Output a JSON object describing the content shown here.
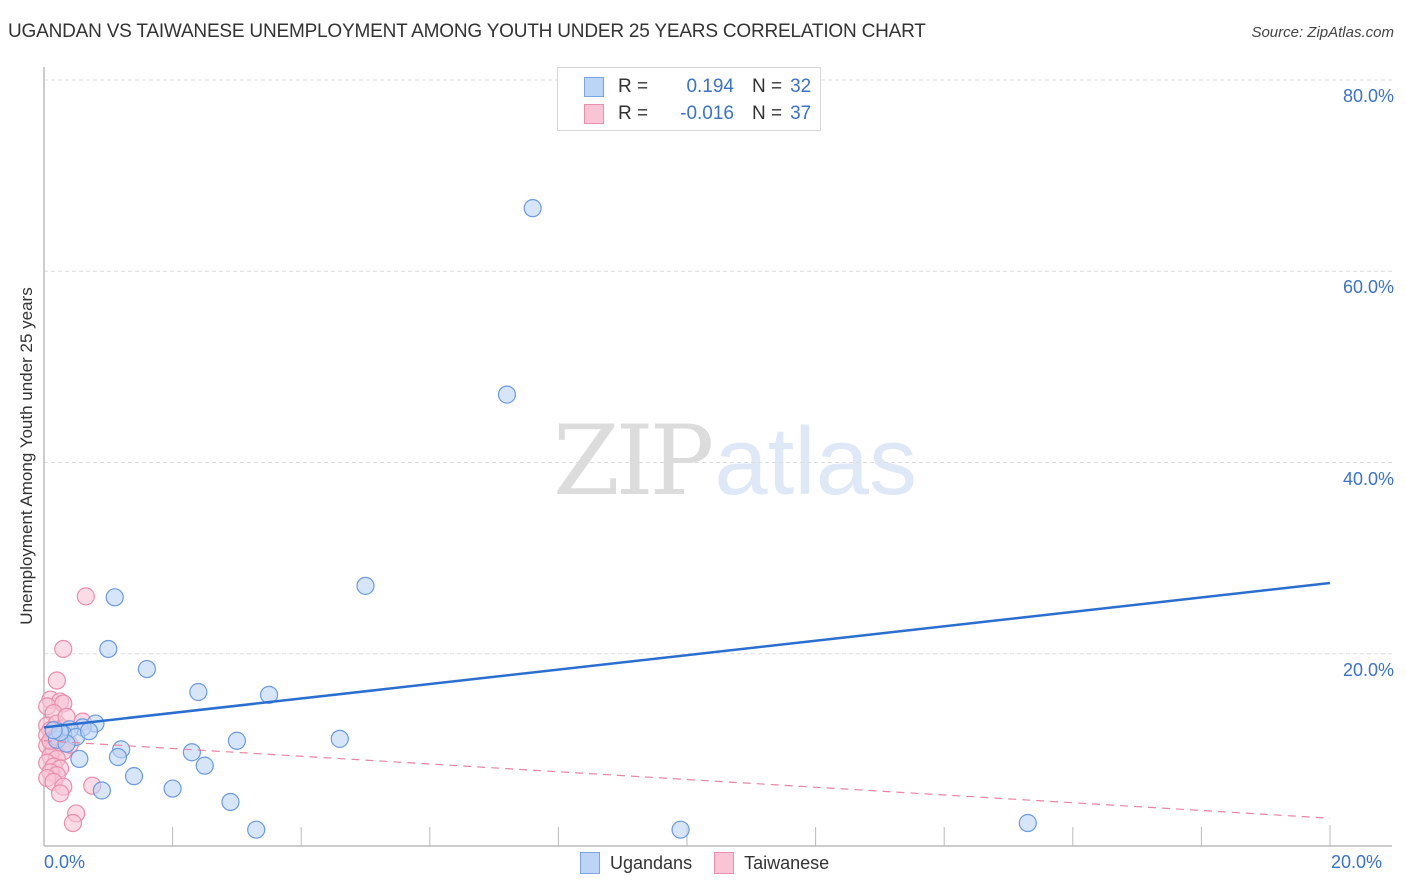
{
  "header": {
    "title": "UGANDAN VS TAIWANESE UNEMPLOYMENT AMONG YOUTH UNDER 25 YEARS CORRELATION CHART",
    "source": "Source: ZipAtlas.com"
  },
  "watermark": {
    "zip": "ZIP",
    "atlas": "atlas"
  },
  "legend": {
    "rows": [
      {
        "r_label": "R =",
        "r_value": "0.194",
        "n_label": "N =",
        "n_value": "32",
        "series": "Ugandans"
      },
      {
        "r_label": "R =",
        "r_value": "-0.016",
        "n_label": "N =",
        "n_value": "37",
        "series": "Taiwanese"
      }
    ]
  },
  "bottom_legend": {
    "items": [
      {
        "label": "Ugandans",
        "color": "#bcd4f5"
      },
      {
        "label": "Taiwanese",
        "color": "#f9c5d5"
      }
    ]
  },
  "axes": {
    "ylabel": "Unemployment Among Youth under 25 years",
    "y_ticks": [
      "80.0%",
      "60.0%",
      "40.0%",
      "20.0%"
    ],
    "x_ticks": {
      "left": "0.0%",
      "right": "20.0%"
    }
  },
  "colors": {
    "blue_fill": "#bcd4f5",
    "blue_stroke": "#6b9be0",
    "blue_line": "#2a6fd0",
    "pink_fill": "#f9c5d5",
    "pink_stroke": "#ea8eab",
    "pink_line": "#e8849f",
    "tick_label": "#3b73c9"
  },
  "chart_data": {
    "type": "scatter",
    "title": "UGANDAN VS TAIWANESE UNEMPLOYMENT AMONG YOUTH UNDER 25 YEARS CORRELATION CHART",
    "xlabel": "",
    "ylabel": "Unemployment Among Youth under 25 years",
    "xlim": [
      0,
      20
    ],
    "ylim": [
      0,
      80
    ],
    "x_tick_labels": [
      "0.0%",
      "20.0%"
    ],
    "y_tick_labels": [
      "20.0%",
      "40.0%",
      "60.0%",
      "80.0%"
    ],
    "grid": "horizontal dashed",
    "legend_position": "top-center and bottom-center",
    "series": [
      {
        "name": "Ugandans",
        "r": 0.194,
        "n": 32,
        "trend": {
          "x": [
            0,
            20
          ],
          "y": [
            12.3,
            27.4
          ]
        },
        "points": [
          [
            7.6,
            66.6
          ],
          [
            7.2,
            47.1
          ],
          [
            5.0,
            27.1
          ],
          [
            1.1,
            25.9
          ],
          [
            1.0,
            20.5
          ],
          [
            1.6,
            18.4
          ],
          [
            2.4,
            16.0
          ],
          [
            3.5,
            15.7
          ],
          [
            0.8,
            12.7
          ],
          [
            0.6,
            12.3
          ],
          [
            0.4,
            12.1
          ],
          [
            0.3,
            11.6
          ],
          [
            0.5,
            11.3
          ],
          [
            0.2,
            11.0
          ],
          [
            0.35,
            10.6
          ],
          [
            4.6,
            11.1
          ],
          [
            3.0,
            10.9
          ],
          [
            1.2,
            10.0
          ],
          [
            2.3,
            9.7
          ],
          [
            1.15,
            9.2
          ],
          [
            0.55,
            9.0
          ],
          [
            2.5,
            8.3
          ],
          [
            1.4,
            7.2
          ],
          [
            0.9,
            5.7
          ],
          [
            2.0,
            5.9
          ],
          [
            2.9,
            4.5
          ],
          [
            3.3,
            1.6
          ],
          [
            9.9,
            1.6
          ],
          [
            15.3,
            2.3
          ],
          [
            0.25,
            11.8
          ],
          [
            0.7,
            11.9
          ],
          [
            0.15,
            12.0
          ]
        ]
      },
      {
        "name": "Taiwanese",
        "r": -0.016,
        "n": 37,
        "trend": {
          "x": [
            0,
            20
          ],
          "y": [
            10.9,
            2.8
          ]
        },
        "points": [
          [
            0.65,
            26.0
          ],
          [
            0.3,
            20.5
          ],
          [
            0.2,
            17.2
          ],
          [
            0.1,
            15.2
          ],
          [
            0.25,
            15.0
          ],
          [
            0.05,
            14.5
          ],
          [
            0.3,
            14.8
          ],
          [
            0.15,
            13.8
          ],
          [
            0.05,
            12.5
          ],
          [
            0.2,
            12.7
          ],
          [
            0.1,
            12.0
          ],
          [
            0.3,
            12.2
          ],
          [
            0.05,
            11.5
          ],
          [
            0.15,
            11.0
          ],
          [
            0.25,
            10.8
          ],
          [
            0.05,
            10.4
          ],
          [
            0.15,
            10.0
          ],
          [
            0.3,
            9.8
          ],
          [
            0.1,
            9.3
          ],
          [
            0.2,
            9.0
          ],
          [
            0.05,
            8.6
          ],
          [
            0.15,
            8.2
          ],
          [
            0.25,
            8.0
          ],
          [
            0.1,
            7.6
          ],
          [
            0.2,
            7.3
          ],
          [
            0.05,
            7.0
          ],
          [
            0.15,
            6.6
          ],
          [
            0.3,
            6.1
          ],
          [
            0.75,
            6.2
          ],
          [
            0.25,
            5.4
          ],
          [
            0.5,
            3.3
          ],
          [
            0.45,
            2.3
          ],
          [
            0.4,
            10.5
          ],
          [
            0.6,
            12.9
          ],
          [
            0.35,
            13.4
          ],
          [
            0.1,
            10.9
          ],
          [
            0.2,
            11.3
          ]
        ]
      }
    ]
  }
}
